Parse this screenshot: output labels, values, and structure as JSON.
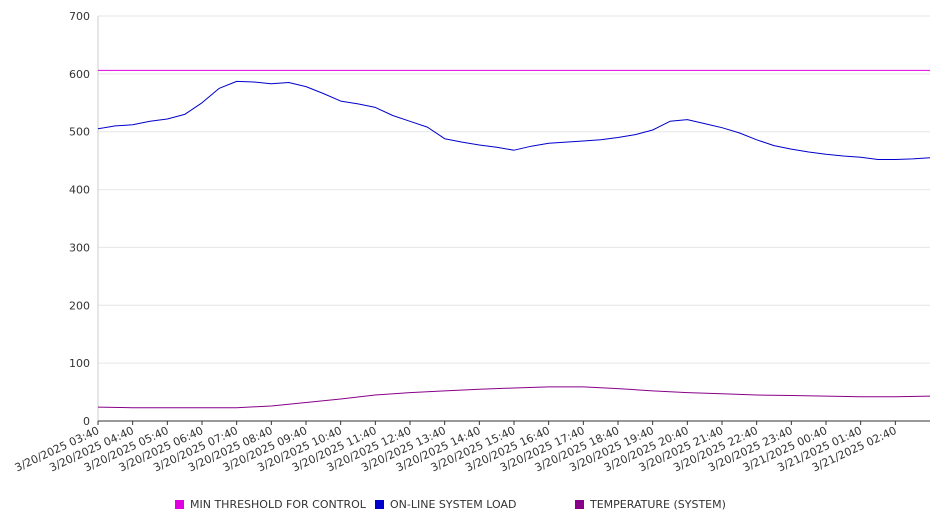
{
  "chart_data": {
    "type": "line",
    "title": "",
    "xlabel": "",
    "ylabel": "",
    "ylim": [
      0,
      700
    ],
    "yticks": [
      0,
      100,
      200,
      300,
      400,
      500,
      600,
      700
    ],
    "grid": true,
    "legend_position": "bottom",
    "x_start": "3/20/2025 03:40",
    "x_end": "3/21/2025 03:40",
    "x_tick_labels": [
      "3/20/2025 03:40",
      "3/20/2025 04:40",
      "3/20/2025 05:40",
      "3/20/2025 06:40",
      "3/20/2025 07:40",
      "3/20/2025 08:40",
      "3/20/2025 09:40",
      "3/20/2025 10:40",
      "3/20/2025 11:40",
      "3/20/2025 12:40",
      "3/20/2025 13:40",
      "3/20/2025 14:40",
      "3/20/2025 15:40",
      "3/20/2025 16:40",
      "3/20/2025 17:40",
      "3/20/2025 18:40",
      "3/20/2025 19:40",
      "3/20/2025 20:40",
      "3/20/2025 21:40",
      "3/20/2025 22:40",
      "3/20/2025 23:40",
      "3/21/2025 00:40",
      "3/21/2025 01:40",
      "3/21/2025 02:40"
    ],
    "series": [
      {
        "name": "MIN THRESHOLD FOR CONTROL",
        "color": "#e000e0",
        "x": [
          "3/20/2025 03:40",
          "3/21/2025 03:40"
        ],
        "values": [
          606,
          606
        ]
      },
      {
        "name": "ON-LINE SYSTEM LOAD",
        "color": "#0000cc",
        "x": [
          "3/20/2025 03:40",
          "3/20/2025 04:10",
          "3/20/2025 04:40",
          "3/20/2025 05:10",
          "3/20/2025 05:40",
          "3/20/2025 06:10",
          "3/20/2025 06:40",
          "3/20/2025 07:10",
          "3/20/2025 07:40",
          "3/20/2025 08:10",
          "3/20/2025 08:40",
          "3/20/2025 09:10",
          "3/20/2025 09:40",
          "3/20/2025 10:10",
          "3/20/2025 10:40",
          "3/20/2025 11:10",
          "3/20/2025 11:40",
          "3/20/2025 12:10",
          "3/20/2025 12:40",
          "3/20/2025 13:10",
          "3/20/2025 13:40",
          "3/20/2025 14:10",
          "3/20/2025 14:40",
          "3/20/2025 15:10",
          "3/20/2025 15:40",
          "3/20/2025 16:10",
          "3/20/2025 16:40",
          "3/20/2025 17:10",
          "3/20/2025 17:40",
          "3/20/2025 18:10",
          "3/20/2025 18:40",
          "3/20/2025 19:10",
          "3/20/2025 19:40",
          "3/20/2025 20:10",
          "3/20/2025 20:40",
          "3/20/2025 21:10",
          "3/20/2025 21:40",
          "3/20/2025 22:10",
          "3/20/2025 22:40",
          "3/20/2025 23:10",
          "3/20/2025 23:40",
          "3/21/2025 00:10",
          "3/21/2025 00:40",
          "3/21/2025 01:10",
          "3/21/2025 01:40",
          "3/21/2025 02:10",
          "3/21/2025 02:40",
          "3/21/2025 03:10",
          "3/21/2025 03:40"
        ],
        "values": [
          505,
          510,
          512,
          518,
          522,
          530,
          550,
          575,
          587,
          586,
          583,
          585,
          578,
          566,
          553,
          548,
          542,
          528,
          518,
          508,
          488,
          482,
          477,
          473,
          468,
          475,
          480,
          482,
          484,
          486,
          490,
          495,
          503,
          518,
          521,
          514,
          507,
          498,
          486,
          476,
          470,
          465,
          461,
          458,
          456,
          452,
          452,
          453,
          455
        ]
      },
      {
        "name": "TEMPERATURE (SYSTEM)",
        "color": "#880088",
        "x": [
          "3/20/2025 03:40",
          "3/20/2025 04:40",
          "3/20/2025 05:40",
          "3/20/2025 06:40",
          "3/20/2025 07:40",
          "3/20/2025 08:40",
          "3/20/2025 09:40",
          "3/20/2025 10:40",
          "3/20/2025 11:40",
          "3/20/2025 12:40",
          "3/20/2025 13:40",
          "3/20/2025 14:40",
          "3/20/2025 15:40",
          "3/20/2025 16:40",
          "3/20/2025 17:40",
          "3/20/2025 18:40",
          "3/20/2025 19:40",
          "3/20/2025 20:40",
          "3/20/2025 21:40",
          "3/20/2025 22:40",
          "3/20/2025 23:40",
          "3/21/2025 00:40",
          "3/21/2025 01:40",
          "3/21/2025 02:40",
          "3/21/2025 03:40"
        ],
        "values": [
          24,
          23,
          23,
          23,
          23,
          26,
          32,
          38,
          45,
          49,
          52,
          55,
          57,
          59,
          59,
          56,
          52,
          49,
          47,
          45,
          44,
          43,
          42,
          42,
          43
        ]
      }
    ]
  }
}
